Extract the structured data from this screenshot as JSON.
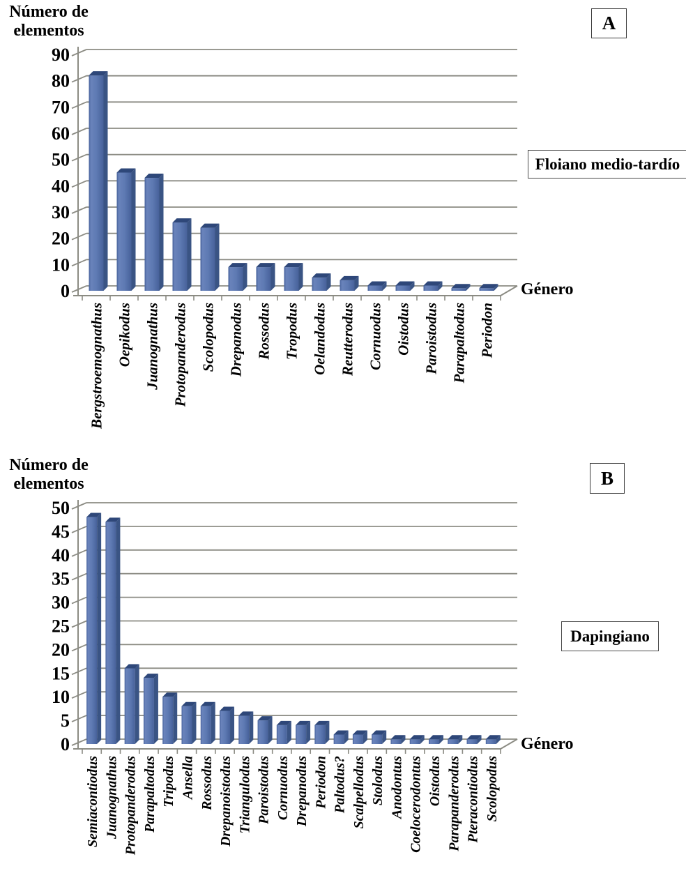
{
  "figure_background": "#ffffff",
  "chart_data": [
    {
      "type": "bar",
      "panel_letter": "A",
      "ylabel": "Número de elementos",
      "ylabel_line1": "Número de",
      "ylabel_line2": "elementos",
      "xlabel": "Género",
      "annotation": "Floiano medio-tardío",
      "ylim": [
        0,
        90
      ],
      "ytick_step": 10,
      "grid": true,
      "legend": "none",
      "categories": [
        "Bergstroemognathus",
        "Oepikodus",
        "Juanognathus",
        "Protopanderodus",
        "Scolopodus",
        "Drepanodus",
        "Rossodus",
        "Tropodus",
        "Oelandodus",
        "Reutterodus",
        "Cornuodus",
        "Oistodus",
        "Paroistodus",
        "Parapaltodus",
        "Periodon"
      ],
      "values": [
        82,
        45,
        43,
        26,
        24,
        9,
        9,
        9,
        5,
        4,
        2,
        2,
        2,
        1,
        1
      ],
      "bar_color_front": "#5E7AB3",
      "bar_color_side": "#3A5484",
      "bar_color_top": "#2E4779",
      "gridline_color": "#8B8B83"
    },
    {
      "type": "bar",
      "panel_letter": "B",
      "ylabel": "Número de elementos",
      "ylabel_line1": "Número de",
      "ylabel_line2": "elementos",
      "xlabel": "Género",
      "annotation": "Dapingiano",
      "ylim": [
        0,
        50
      ],
      "ytick_step": 5,
      "grid": true,
      "legend": "none",
      "categories": [
        "Semiacontiodus",
        "Juanognathus",
        "Protopanderodus",
        "Parapaltodus",
        "Tripodus",
        "Ansella",
        "Rossodus",
        "Drepanoistodus",
        "Triangulodus",
        "Paroistodus",
        "Cornuodus",
        "Drepanodus",
        "Periodon",
        "Paltodus?",
        "Scalpellodus",
        "Stolodus",
        "Anodontus",
        "Coelocerodontus",
        "Oistodus",
        "Parapanderodus",
        "Pteracontiodus",
        "Scolopodus"
      ],
      "values": [
        48,
        47,
        16,
        14,
        10,
        8,
        8,
        7,
        6,
        5,
        4,
        4,
        4,
        2,
        2,
        2,
        1,
        1,
        1,
        1,
        1,
        1
      ],
      "bar_color_front": "#5E7AB3",
      "bar_color_side": "#3A5484",
      "bar_color_top": "#2E4779",
      "gridline_color": "#8B8B83"
    }
  ]
}
